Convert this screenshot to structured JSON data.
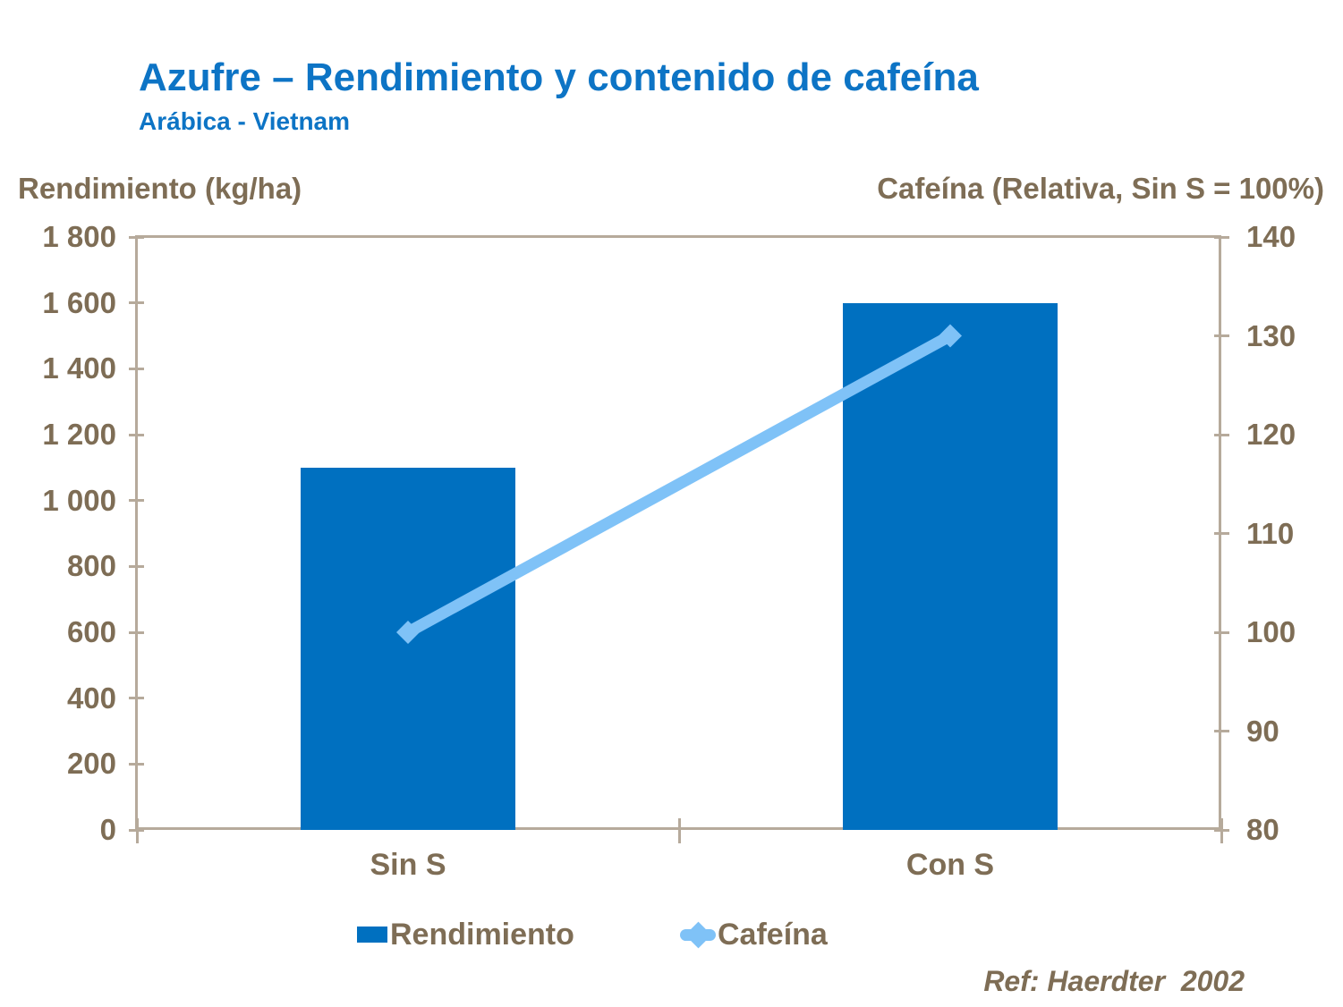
{
  "title": "Azufre – Rendimiento y contenido de cafeína",
  "subtitle": "Arábica - Vietnam",
  "reference": "Ref: Haerdter  2002",
  "colors": {
    "title_blue": "#0d74c5",
    "bar_blue": "#0070c0",
    "line_light_blue": "#7fc2f7",
    "text_brown": "#7e6d55",
    "axis_line_tan": "#b6aa9b",
    "background": "#ffffff"
  },
  "chart_data": {
    "type": "bar",
    "subtype": "bar-and-line-dual-axis",
    "categories": [
      "Sin S",
      "Con S"
    ],
    "series": [
      {
        "name": "Rendimiento",
        "type": "bar",
        "axis": "left",
        "values": [
          1100,
          1600
        ],
        "color": "#0070c0"
      },
      {
        "name": "Cafeína",
        "type": "line",
        "axis": "right",
        "values": [
          100,
          130
        ],
        "color": "#7fc2f7",
        "marker": "diamond"
      }
    ],
    "left_axis": {
      "title": "Rendimiento (kg/ha)",
      "min": 0,
      "max": 1800,
      "step": 200,
      "tick_labels": [
        "0",
        "200",
        "400",
        "600",
        "800",
        "1 000",
        "1 200",
        "1 400",
        "1 600",
        "1 800"
      ]
    },
    "right_axis": {
      "title": "Cafeína (Relativa, Sin S = 100%)",
      "min": 80,
      "max": 140,
      "step": 10,
      "tick_labels": [
        "80",
        "90",
        "100",
        "110",
        "120",
        "130",
        "140"
      ]
    },
    "grid": false,
    "legend_position": "bottom"
  }
}
